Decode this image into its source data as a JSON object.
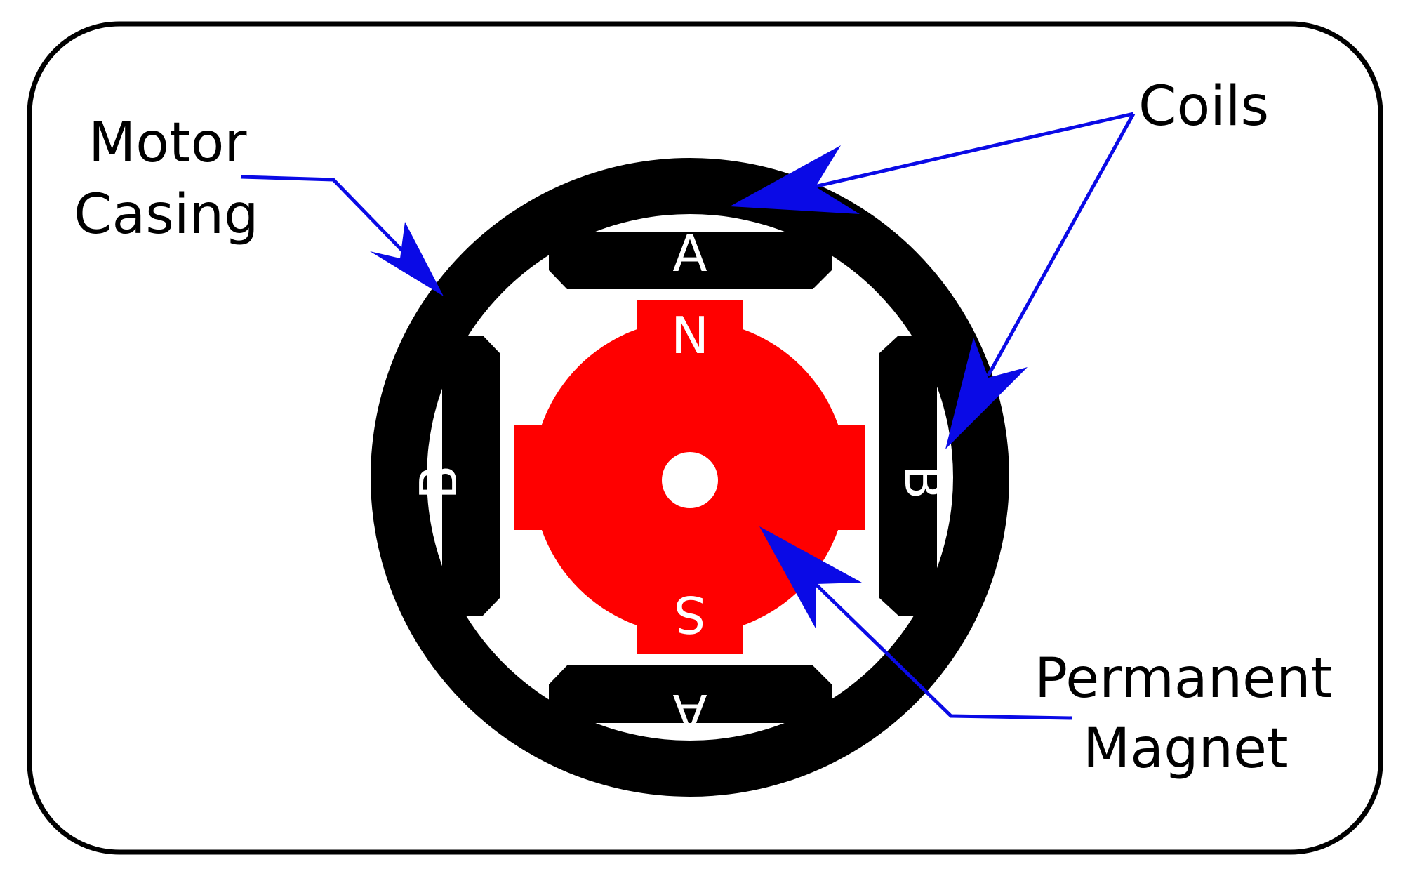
{
  "labels": {
    "motor_casing_line1": "Motor",
    "motor_casing_line2": "Casing",
    "coils": "Coils",
    "permanent_magnet_line1": "Permanent",
    "permanent_magnet_line2": "Magnet"
  },
  "coils": {
    "top": "A",
    "bottom": "A",
    "left": "B",
    "right": "B"
  },
  "poles": {
    "north": "N",
    "south": "S"
  },
  "colors": {
    "casing": "#000000",
    "magnet": "#ff0000",
    "arrow": "#0a0ae6",
    "background": "#ffffff"
  }
}
